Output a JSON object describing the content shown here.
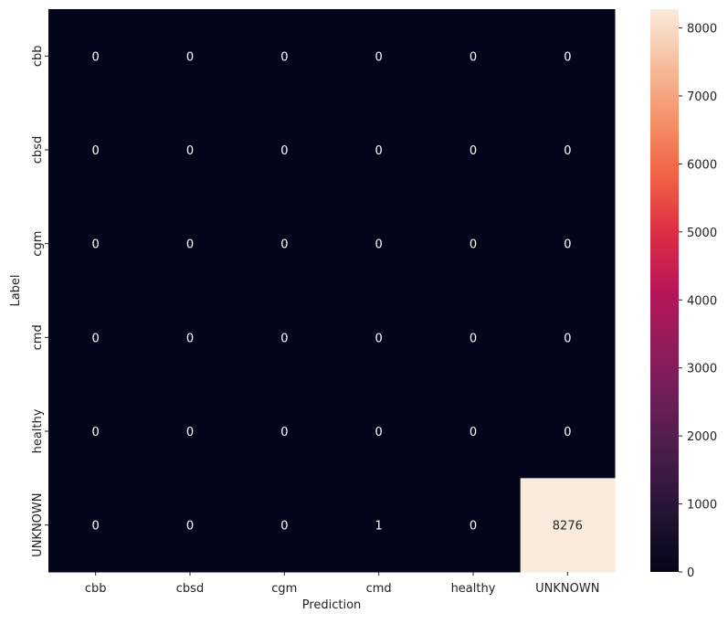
{
  "chart_data": {
    "type": "heatmap",
    "title": "",
    "xlabel": "Prediction",
    "ylabel": "Label",
    "x_categories": [
      "cbb",
      "cbsd",
      "cgm",
      "cmd",
      "healthy",
      "UNKNOWN"
    ],
    "y_categories": [
      "cbb",
      "cbsd",
      "cgm",
      "cmd",
      "healthy",
      "UNKNOWN"
    ],
    "values": [
      [
        0,
        0,
        0,
        0,
        0,
        0
      ],
      [
        0,
        0,
        0,
        0,
        0,
        0
      ],
      [
        0,
        0,
        0,
        0,
        0,
        0
      ],
      [
        0,
        0,
        0,
        0,
        0,
        0
      ],
      [
        0,
        0,
        0,
        0,
        0,
        0
      ],
      [
        0,
        0,
        0,
        1,
        0,
        8276
      ]
    ],
    "colormap": "rocket",
    "colorbar": {
      "range": [
        0,
        8276
      ],
      "ticks": [
        0,
        1000,
        2000,
        3000,
        4000,
        5000,
        6000,
        7000,
        8000
      ]
    },
    "annotations": "cell values",
    "grid": false,
    "legend": "colorbar-right"
  }
}
